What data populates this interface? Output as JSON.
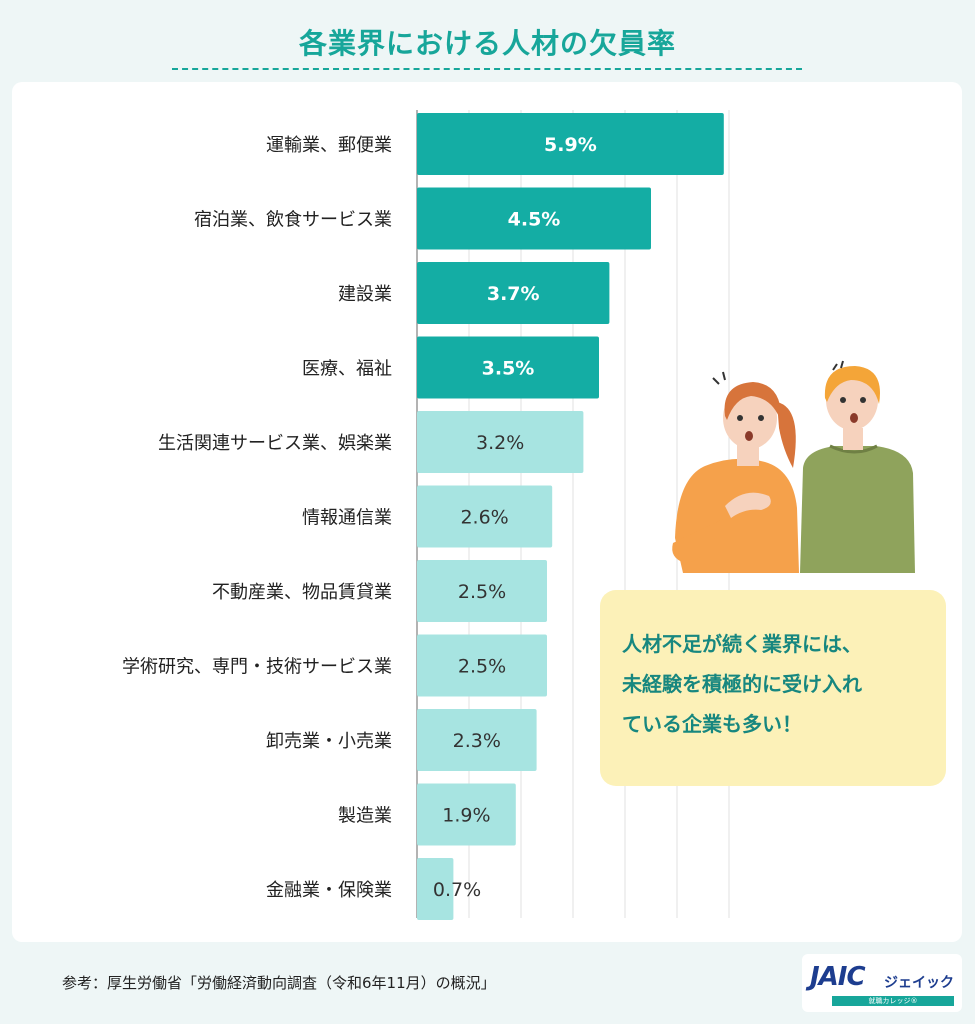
{
  "title": "各業界における人材の欠員率",
  "callout": {
    "lines": [
      "人材不足が続く業界には、",
      "未経験を積極的に受け入れ",
      "ている企業も多い！"
    ]
  },
  "source": "参考：厚生労働省「労働経済動向調査（令和6年11月）の概況」",
  "logo": {
    "mark": "JAIC",
    "name": "ジェイック",
    "tagline": "就職カレッジ®"
  },
  "colors": {
    "accent": "#17a69a",
    "bar_dark": "#14ada4",
    "bar_light": "#a7e4e1",
    "callout_bg": "#fcf1b8",
    "callout_text": "#17877f"
  },
  "chart_data": {
    "type": "bar",
    "orientation": "horizontal",
    "title": "各業界における人材の欠員率",
    "unit": "%",
    "categories": [
      "運輸業、郵便業",
      "宿泊業、飲食サービス業",
      "建設業",
      "医療、福祉",
      "生活関連サービス業、娯楽業",
      "情報通信業",
      "不動産業、物品賃貸業",
      "学術研究、専門・技術サービス業",
      "卸売業・小売業",
      "製造業",
      "金融業・保険業"
    ],
    "values": [
      5.9,
      4.5,
      3.7,
      3.5,
      3.2,
      2.6,
      2.5,
      2.5,
      2.3,
      1.9,
      0.7
    ],
    "labels": [
      "5.9%",
      "4.5%",
      "3.7%",
      "3.5%",
      "3.2%",
      "2.6%",
      "2.5%",
      "2.5%",
      "2.3%",
      "1.9%",
      "0.7%"
    ],
    "highlight_top": 4,
    "xlim": [
      0,
      6
    ],
    "grid": true,
    "legend": "none"
  }
}
